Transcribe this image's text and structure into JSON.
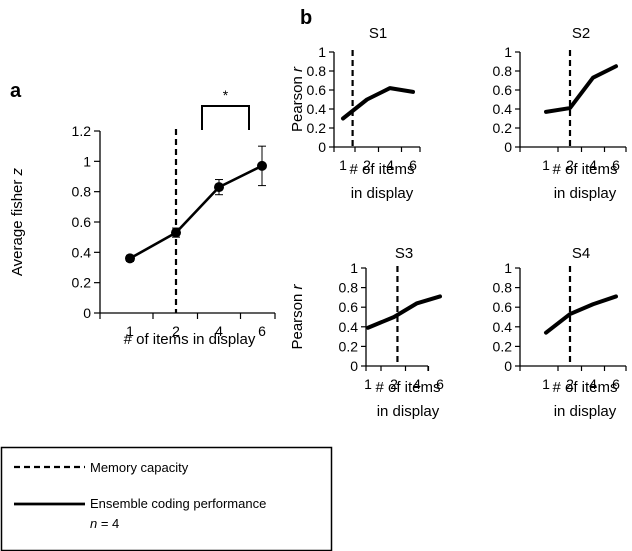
{
  "legend": {
    "memory_label": "Memory capacity",
    "ensemble_label": "Ensemble coding performance",
    "n_prefix": "n",
    "n_suffix": " = 4"
  },
  "chart_data": [
    {
      "id": "a",
      "panel_label": "a",
      "type": "line",
      "categories": [
        "1",
        "2",
        "4",
        "6"
      ],
      "values": [
        0.36,
        0.53,
        0.83,
        0.97
      ],
      "errors": [
        0.02,
        0.03,
        0.05,
        0.13
      ],
      "ylabel_prefix": "Average fisher ",
      "ylabel_italic": "z",
      "xlabel": "# of items in display",
      "ylim": [
        0,
        1.2
      ],
      "yticks": [
        "0",
        "0.2",
        "0.4",
        "0.6",
        "0.8",
        "1",
        "1.2"
      ],
      "memory_capacity": 2,
      "significance": {
        "from": 4,
        "to": 6,
        "label": "*"
      }
    },
    {
      "id": "S1",
      "panel_label": "b",
      "type": "line",
      "title": "S1",
      "categories": [
        "1",
        "2",
        "4",
        "6"
      ],
      "values": [
        0.3,
        0.5,
        0.62,
        0.58
      ],
      "ylabel_prefix": "Pearson ",
      "ylabel_italic": "r",
      "xlabel": [
        "# of items",
        "in display"
      ],
      "ylim": [
        0,
        1
      ],
      "yticks": [
        "0",
        "0.2",
        "0.4",
        "0.6",
        "0.8",
        "1"
      ],
      "memory_capacity": 1.4
    },
    {
      "id": "S2",
      "type": "line",
      "title": "S2",
      "categories": [
        "1",
        "2",
        "4",
        "6"
      ],
      "values": [
        0.37,
        0.41,
        0.73,
        0.85
      ],
      "xlabel": [
        "# of items",
        "in display"
      ],
      "ylim": [
        0,
        1
      ],
      "yticks": [
        "0",
        "0.2",
        "0.4",
        "0.6",
        "0.8",
        "1"
      ],
      "memory_capacity": 2
    },
    {
      "id": "S3",
      "type": "line",
      "title": "S3",
      "categories": [
        "1",
        "2",
        "4",
        "6"
      ],
      "values": [
        0.39,
        0.5,
        0.64,
        0.71
      ],
      "ylabel_prefix": "Pearson ",
      "ylabel_italic": "r",
      "xlabel": [
        "# of items",
        "in display"
      ],
      "ylim": [
        0,
        1
      ],
      "yticks": [
        "0",
        "0.2",
        "0.4",
        "0.6",
        "0.8",
        "1"
      ],
      "memory_capacity": 2.3
    },
    {
      "id": "S4",
      "type": "line",
      "title": "S4",
      "categories": [
        "1",
        "2",
        "4",
        "6"
      ],
      "values": [
        0.34,
        0.53,
        0.63,
        0.71
      ],
      "xlabel": [
        "# of items",
        "in display"
      ],
      "ylim": [
        0,
        1
      ],
      "yticks": [
        "0",
        "0.2",
        "0.4",
        "0.6",
        "0.8",
        "1"
      ],
      "memory_capacity": 2
    }
  ]
}
